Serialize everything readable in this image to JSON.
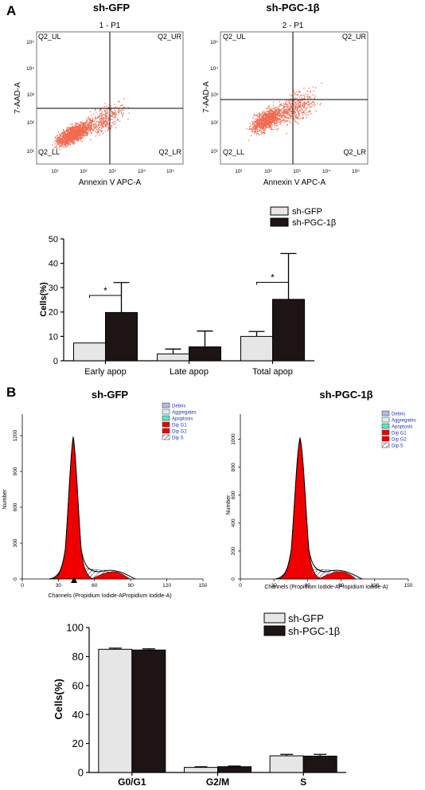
{
  "panels": {
    "a": {
      "label": "A",
      "flow_plots": [
        {
          "title": "sh-GFP",
          "subtitle": "1 - P1",
          "xlabel": "Annexin V APC-A",
          "ylabel": "7-AAD-A",
          "quadrants": [
            "Q2_UL",
            "Q2_UR",
            "Q2_LL",
            "Q2_LR"
          ],
          "xticks": [
            "10¹",
            "10²",
            "10³",
            "10⁴",
            "10⁵"
          ],
          "yticks": [
            "10¹",
            "10²",
            "10³",
            "10⁴",
            "10⁵"
          ]
        },
        {
          "title": "sh-PGC-1β",
          "subtitle": "2 - P1",
          "xlabel": "Annexin V APC-A",
          "ylabel": "7-AAD-A",
          "quadrants": [
            "Q2_UL",
            "Q2_UR",
            "Q2_LL",
            "Q2_LR"
          ],
          "xticks": [
            "10¹",
            "10²",
            "10³",
            "10⁴",
            "10⁵"
          ],
          "yticks": [
            "10¹",
            "10²",
            "10³",
            "10⁴",
            "10⁵"
          ]
        }
      ]
    },
    "b": {
      "label": "B",
      "histograms": [
        {
          "title": "sh-GFP",
          "xlabel": "Channels (Propidium Iodide-APropidium Iodide-A)",
          "ylabel": "Number",
          "xticks": [
            "0",
            "30",
            "60",
            "90",
            "120",
            "150"
          ],
          "yticks": [
            "0",
            "300",
            "600",
            "900",
            "1200"
          ],
          "legend": [
            "Debris",
            "Aggregates",
            "Apoptosis",
            "Dip G1",
            "Dip G2",
            "Dip S"
          ]
        },
        {
          "title": "sh-PGC-1β",
          "xlabel": "Channels (Propidium Iodide-APropidium Iodide-A)",
          "ylabel": "Number",
          "xticks": [
            "0",
            "30",
            "60",
            "90",
            "120",
            "150"
          ],
          "yticks": [
            "0",
            "200",
            "400",
            "600",
            "800",
            "1000"
          ],
          "legend": [
            "Debris",
            "Aggregates",
            "Apoptosis",
            "Dip G1",
            "Dip G2",
            "Dip S"
          ]
        }
      ]
    }
  },
  "colors": {
    "gfp_bar": "#e6e6e6",
    "pgc_bar": "#1e1414",
    "g1_fill": "#ee0000",
    "scatter": "#f26a50"
  },
  "chart_data": [
    {
      "type": "bar",
      "categories": [
        "Early apop",
        "Late apop",
        "Total apop"
      ],
      "series": [
        {
          "name": "sh-GFP",
          "values": [
            7.3,
            2.8,
            10.0
          ],
          "errors": [
            0,
            2.0,
            2.0
          ]
        },
        {
          "name": "sh-PGC-1β",
          "values": [
            19.8,
            5.7,
            25.2
          ],
          "errors": [
            12.3,
            6.5,
            18.8
          ]
        }
      ],
      "ylabel": "Cells(%)",
      "ylim": [
        0,
        50
      ],
      "yticks": [
        0,
        10,
        20,
        30,
        40,
        50
      ],
      "significance": [
        "*",
        "",
        "*"
      ],
      "legend": "top-right"
    },
    {
      "type": "bar",
      "categories": [
        "G0/G1",
        "G2/M",
        "S"
      ],
      "series": [
        {
          "name": "sh-GFP",
          "values": [
            85.0,
            3.5,
            11.5
          ],
          "errors": [
            0.8,
            0.4,
            1.0
          ]
        },
        {
          "name": "sh-PGC-1β",
          "values": [
            84.5,
            4.0,
            11.3
          ],
          "errors": [
            0.8,
            0.4,
            1.2
          ]
        }
      ],
      "ylabel": "Cells(%)",
      "ylim": [
        0,
        100
      ],
      "yticks": [
        0,
        20,
        40,
        60,
        80,
        100
      ],
      "legend": "top-right"
    }
  ]
}
